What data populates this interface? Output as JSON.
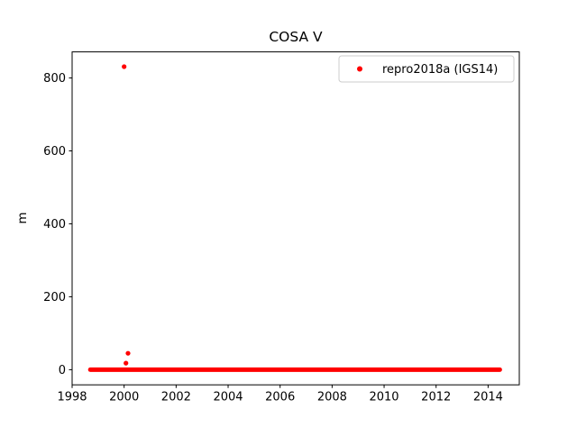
{
  "chart_data": {
    "type": "scatter",
    "title": "COSA V",
    "xlabel": "",
    "ylabel": "m",
    "xlim": [
      1998.0,
      2015.2
    ],
    "ylim": [
      -41.5,
      871.5
    ],
    "x_ticks": [
      1998,
      2000,
      2002,
      2004,
      2006,
      2008,
      2010,
      2012,
      2014
    ],
    "y_ticks": [
      0,
      200,
      400,
      600,
      800
    ],
    "grid": false,
    "legend": {
      "position": "upper right",
      "entries": [
        {
          "label": "repro2018a (IGS14)",
          "color": "#ff0000",
          "marker": "dot"
        }
      ]
    },
    "series": [
      {
        "name": "repro2018a (IGS14)",
        "color": "#ff0000",
        "marker": "dot",
        "dense_band": {
          "x_start": 1998.7,
          "x_end": 2014.45,
          "y": 0
        },
        "outliers": [
          [
            2000.0,
            831
          ],
          [
            2000.15,
            45
          ],
          [
            2000.07,
            18
          ]
        ]
      }
    ]
  }
}
